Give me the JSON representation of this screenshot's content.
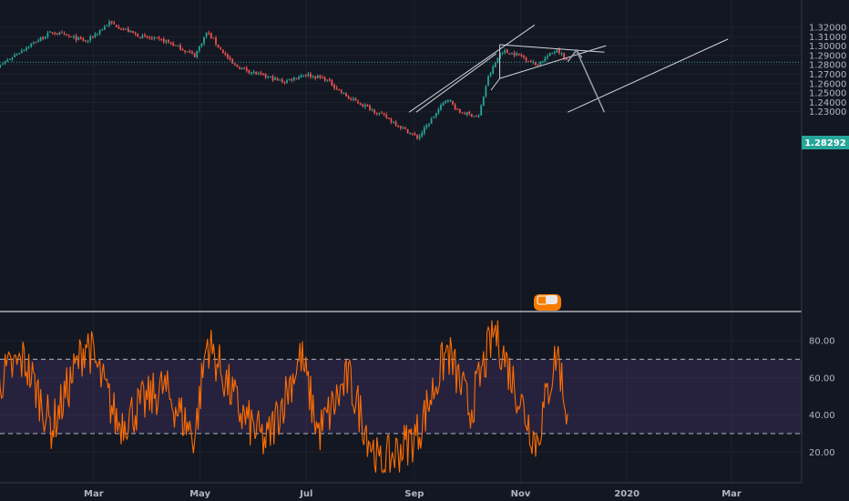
{
  "colors": {
    "background": "#131722",
    "up": "#26a69a",
    "down": "#ef5350",
    "rsi_line": "#ff6d00",
    "rsi_band": "#7e57c2",
    "last_price": "#26a69a",
    "drawing": "#d1d4dc",
    "arrow": "#9598a1"
  },
  "price_axis": {
    "ticks": [
      "1.32000",
      "1.31000",
      "1.30000",
      "1.29000",
      "1.28000",
      "1.27000",
      "1.26000",
      "1.25000",
      "1.24000",
      "1.23000"
    ],
    "last_price_label": "1.28292"
  },
  "rsi_axis": {
    "ticks": [
      "80.00",
      "60.00",
      "40.00",
      "20.00"
    ]
  },
  "time_axis": {
    "ticks": [
      "Mar",
      "May",
      "Jul",
      "Sep",
      "Nov",
      "2020",
      "Mar"
    ]
  },
  "alert_badge": {
    "count": "2"
  },
  "chart_data": [
    {
      "type": "candlestick",
      "panel": "price",
      "ylim": [
        1.23,
        1.325
      ],
      "last_price": 1.28292,
      "key_points": [
        {
          "date": "2019-01-01",
          "close": 1.272
        },
        {
          "date": "2019-01-18",
          "close": 1.295
        },
        {
          "date": "2019-02-05",
          "close": 1.315
        },
        {
          "date": "2019-02-25",
          "close": 1.305
        },
        {
          "date": "2019-03-10",
          "close": 1.325
        },
        {
          "date": "2019-03-28",
          "close": 1.31
        },
        {
          "date": "2019-04-12",
          "close": 1.305
        },
        {
          "date": "2019-04-28",
          "close": 1.29
        },
        {
          "date": "2019-05-05",
          "close": 1.315
        },
        {
          "date": "2019-05-20",
          "close": 1.28
        },
        {
          "date": "2019-06-03",
          "close": 1.27
        },
        {
          "date": "2019-06-18",
          "close": 1.262
        },
        {
          "date": "2019-06-30",
          "close": 1.27
        },
        {
          "date": "2019-07-12",
          "close": 1.265
        },
        {
          "date": "2019-07-25",
          "close": 1.245
        },
        {
          "date": "2019-08-05",
          "close": 1.235
        },
        {
          "date": "2019-08-15",
          "close": 1.225
        },
        {
          "date": "2019-09-03",
          "close": 1.202
        },
        {
          "date": "2019-09-20",
          "close": 1.245
        },
        {
          "date": "2019-09-26",
          "close": 1.23
        },
        {
          "date": "2019-10-08",
          "close": 1.225
        },
        {
          "date": "2019-10-13",
          "close": 1.265
        },
        {
          "date": "2019-10-21",
          "close": 1.295
        },
        {
          "date": "2019-11-01",
          "close": 1.29
        },
        {
          "date": "2019-11-10",
          "close": 1.28
        },
        {
          "date": "2019-11-22",
          "close": 1.297
        },
        {
          "date": "2019-11-28",
          "close": 1.283
        }
      ]
    },
    {
      "type": "line",
      "panel": "rsi",
      "ylim": [
        8,
        92
      ],
      "band": [
        30,
        70
      ],
      "key_points": [
        {
          "date": "2019-01-01",
          "value": 55
        },
        {
          "date": "2019-01-20",
          "value": 70
        },
        {
          "date": "2019-02-05",
          "value": 33
        },
        {
          "date": "2019-02-25",
          "value": 80
        },
        {
          "date": "2019-03-15",
          "value": 35
        },
        {
          "date": "2019-04-10",
          "value": 55
        },
        {
          "date": "2019-04-28",
          "value": 28
        },
        {
          "date": "2019-05-05",
          "value": 80
        },
        {
          "date": "2019-05-25",
          "value": 40
        },
        {
          "date": "2019-06-08",
          "value": 25
        },
        {
          "date": "2019-06-28",
          "value": 72
        },
        {
          "date": "2019-07-08",
          "value": 30
        },
        {
          "date": "2019-07-25",
          "value": 60
        },
        {
          "date": "2019-08-12",
          "value": 12
        },
        {
          "date": "2019-09-03",
          "value": 30
        },
        {
          "date": "2019-09-20",
          "value": 75
        },
        {
          "date": "2019-10-03",
          "value": 42
        },
        {
          "date": "2019-10-17",
          "value": 86
        },
        {
          "date": "2019-10-27",
          "value": 60
        },
        {
          "date": "2019-11-10",
          "value": 25
        },
        {
          "date": "2019-11-22",
          "value": 75
        },
        {
          "date": "2019-11-28",
          "value": 38
        }
      ]
    }
  ]
}
